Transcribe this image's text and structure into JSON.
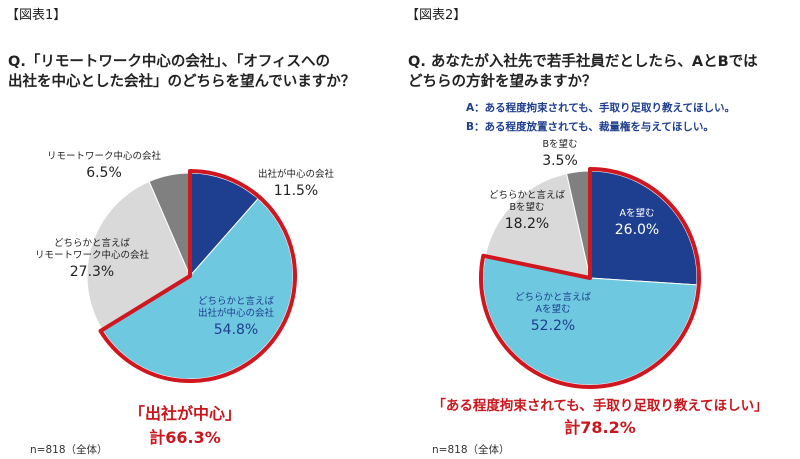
{
  "panels": [
    {
      "tag": "【図表1】",
      "question_line1": "Q.「リモートワーク中心の会社」、「オフィスへの",
      "question_line2": "出社を中心とした会社」のどちらを望んでいますか？",
      "callout_line1": "「出社が中心」",
      "callout_line2": "計66.3%",
      "note": "n=818（全体）"
    },
    {
      "tag": "【図表2】",
      "question_line1": "Q. あなたが入社先で若手社員だとしたら、AとBでは",
      "question_line2": "どちらの方針を望みますか？",
      "legend_a": "A：ある程度拘束されても、手取り足取り教えてほしい。",
      "legend_b": "B：ある程度放置されても、裁量権を与えてほしい。",
      "callout_line1": "「ある程度拘束されても、手取り足取り教えてほしい」",
      "callout_line2": "計78.2%",
      "note": "n=818（全体）"
    }
  ],
  "colors": {
    "navy": "#1e3f8f",
    "light_blue": "#6ec8e0",
    "light_gray": "#d9d9d9",
    "dark_gray": "#808080",
    "highlight": "#d0161e"
  },
  "chart_data": [
    {
      "type": "pie",
      "slices": [
        {
          "label": [
            "出社が中心の会社"
          ],
          "value": 11.5,
          "value_text": "11.5%",
          "color": "#1e3f8f"
        },
        {
          "label": [
            "どちらかと言えば",
            "出社が中心の会社"
          ],
          "value": 54.8,
          "value_text": "54.8%",
          "color": "#6ec8e0"
        },
        {
          "label": [
            "どちらかと言えば",
            "リモートワーク中心の会社"
          ],
          "value": 27.3,
          "value_text": "27.3%",
          "color": "#d9d9d9"
        },
        {
          "label": [
            "リモートワーク中心の会社"
          ],
          "value": 6.5,
          "value_text": "6.5%",
          "color": "#808080"
        }
      ],
      "highlighted_slices": [
        0,
        1
      ]
    },
    {
      "type": "pie",
      "slices": [
        {
          "label": [
            "Aを望む"
          ],
          "value": 26.0,
          "value_text": "26.0%",
          "color": "#1e3f8f"
        },
        {
          "label": [
            "どちらかと言えば",
            "Aを望む"
          ],
          "value": 52.2,
          "value_text": "52.2%",
          "color": "#6ec8e0"
        },
        {
          "label": [
            "どちらかと言えば",
            "Bを望む"
          ],
          "value": 18.2,
          "value_text": "18.2%",
          "color": "#d9d9d9"
        },
        {
          "label": [
            "Bを望む"
          ],
          "value": 3.5,
          "value_text": "3.5%",
          "color": "#808080"
        }
      ],
      "highlighted_slices": [
        0,
        1
      ]
    }
  ]
}
